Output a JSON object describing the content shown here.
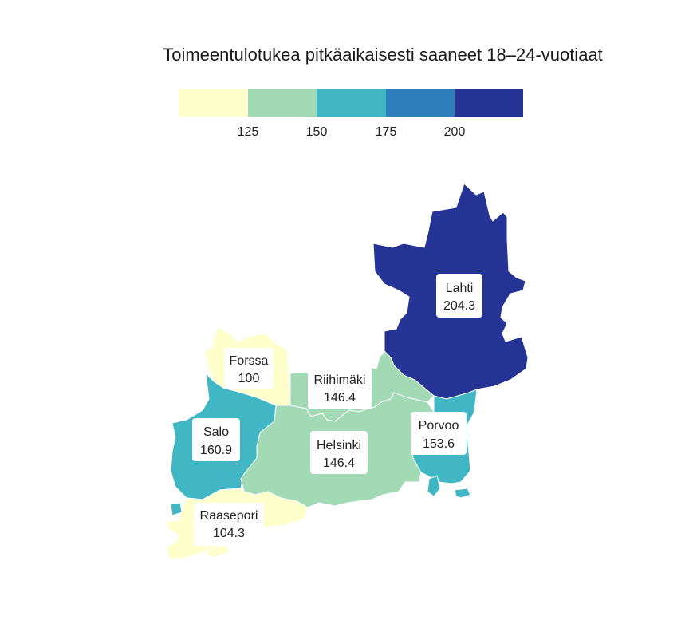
{
  "title": "Toimeentulotukea pitkäaikaisesti saaneet 18–24-vuotiaat",
  "legend": {
    "colors": [
      "#ffffcc",
      "#a1dab4",
      "#41b6c4",
      "#2c7fb8",
      "#253494"
    ],
    "ticks": [
      "125",
      "150",
      "175",
      "200"
    ]
  },
  "regions": [
    {
      "name": "Lahti",
      "value": "204.3",
      "color": "#253494"
    },
    {
      "name": "Forssa",
      "value": "100",
      "color": "#ffffcc"
    },
    {
      "name": "Riihimäki",
      "value": "146.4",
      "color": "#a1dab4"
    },
    {
      "name": "Salo",
      "value": "160.9",
      "color": "#41b6c4"
    },
    {
      "name": "Helsinki",
      "value": "146.4",
      "color": "#a1dab4"
    },
    {
      "name": "Porvoo",
      "value": "153.6",
      "color": "#41b6c4"
    },
    {
      "name": "Raasepori",
      "value": "104.3",
      "color": "#ffffcc"
    }
  ]
}
